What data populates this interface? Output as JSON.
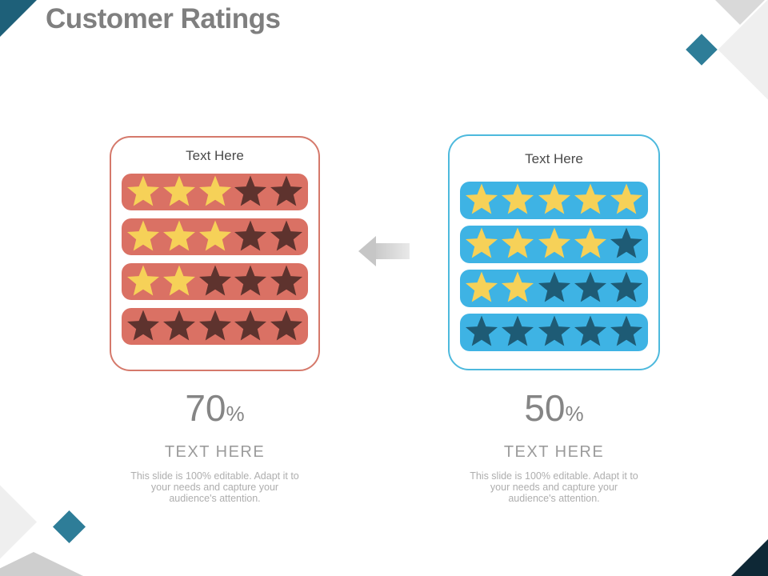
{
  "slide": {
    "title": "Customer Ratings",
    "panels": [
      {
        "title": "Text Here",
        "stars_per_row": 5,
        "rows": [
          3,
          3,
          2,
          0
        ],
        "percent": "70",
        "percent_sign": "%",
        "subtitle": "TEXT HERE",
        "description": "This slide is 100% editable. Adapt it to your needs and capture your audience's attention.",
        "theme": {
          "border": "#d5796b",
          "bar": "#da7164",
          "star_filled": "#f6d158",
          "star_empty": "#5e332e"
        }
      },
      {
        "title": "Text Here",
        "stars_per_row": 5,
        "rows": [
          5,
          4,
          2,
          0
        ],
        "percent": "50",
        "percent_sign": "%",
        "subtitle": "TEXT HERE",
        "description": "This slide is 100% editable. Adapt it to your needs and capture your audience's attention.",
        "theme": {
          "border": "#4db9dd",
          "bar": "#3eb3e4",
          "star_filled": "#f6d158",
          "star_empty": "#1e5b75"
        }
      }
    ],
    "arrow": {
      "direction": "left",
      "color": "#c9c9c9"
    },
    "decor_colors": {
      "teal_diamond": "#2e7d98",
      "light_gray_diamond": "#efefef",
      "mid_gray_diamond": "#d9d9d9",
      "bottom_gray_triangle": "#cecece",
      "corner_top_left": "#1e6079",
      "corner_bottom_right": "#0e2836",
      "title_gray": "#7f7f7f"
    }
  }
}
